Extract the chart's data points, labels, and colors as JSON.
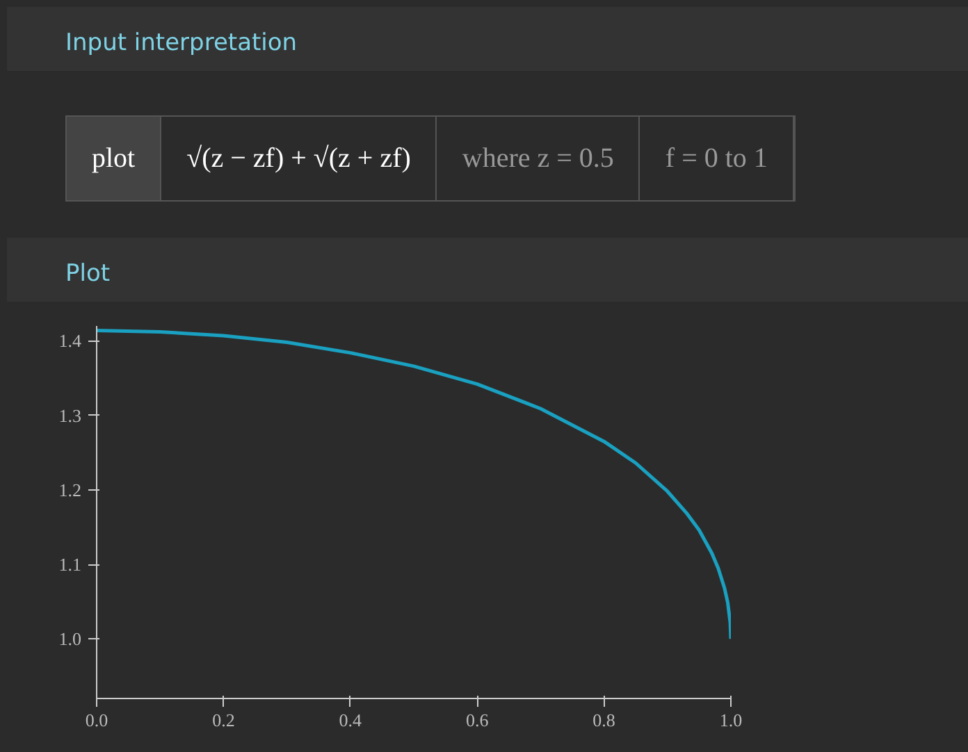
{
  "chart_data": {
    "type": "line",
    "title": "Plot",
    "annotations": [
      "Input interpretation",
      "plot",
      "√(z − zf) + √(z + zf)",
      "where z = 0.5",
      "f = 0 to 1"
    ],
    "x": [
      0,
      0.1,
      0.2,
      0.3,
      0.4,
      0.5,
      0.6,
      0.7,
      0.8,
      0.85,
      0.9,
      0.93,
      0.95,
      0.97,
      0.98,
      0.99,
      0.995,
      0.999,
      1.0
    ],
    "series": [
      {
        "color": "#1aa0c0",
        "values": [
          1.414,
          1.412,
          1.407,
          1.398,
          1.384,
          1.366,
          1.342,
          1.309,
          1.265,
          1.236,
          1.198,
          1.169,
          1.146,
          1.115,
          1.095,
          1.068,
          1.049,
          1.022,
          1.0
        ]
      }
    ],
    "xlim": [
      0,
      1.0
    ],
    "ylim": [
      0.92,
      1.42
    ],
    "xticks": [
      {
        "value": 0,
        "label": "0.0"
      },
      0.2,
      0.4,
      0.6,
      0.8,
      {
        "value": 1,
        "label": "1.0"
      }
    ],
    "yticks": [
      {
        "value": 1,
        "label": "1.0"
      },
      1.1,
      1.2,
      1.3,
      1.4
    ],
    "grid": false,
    "marker": "none",
    "line_style": "solid"
  }
}
